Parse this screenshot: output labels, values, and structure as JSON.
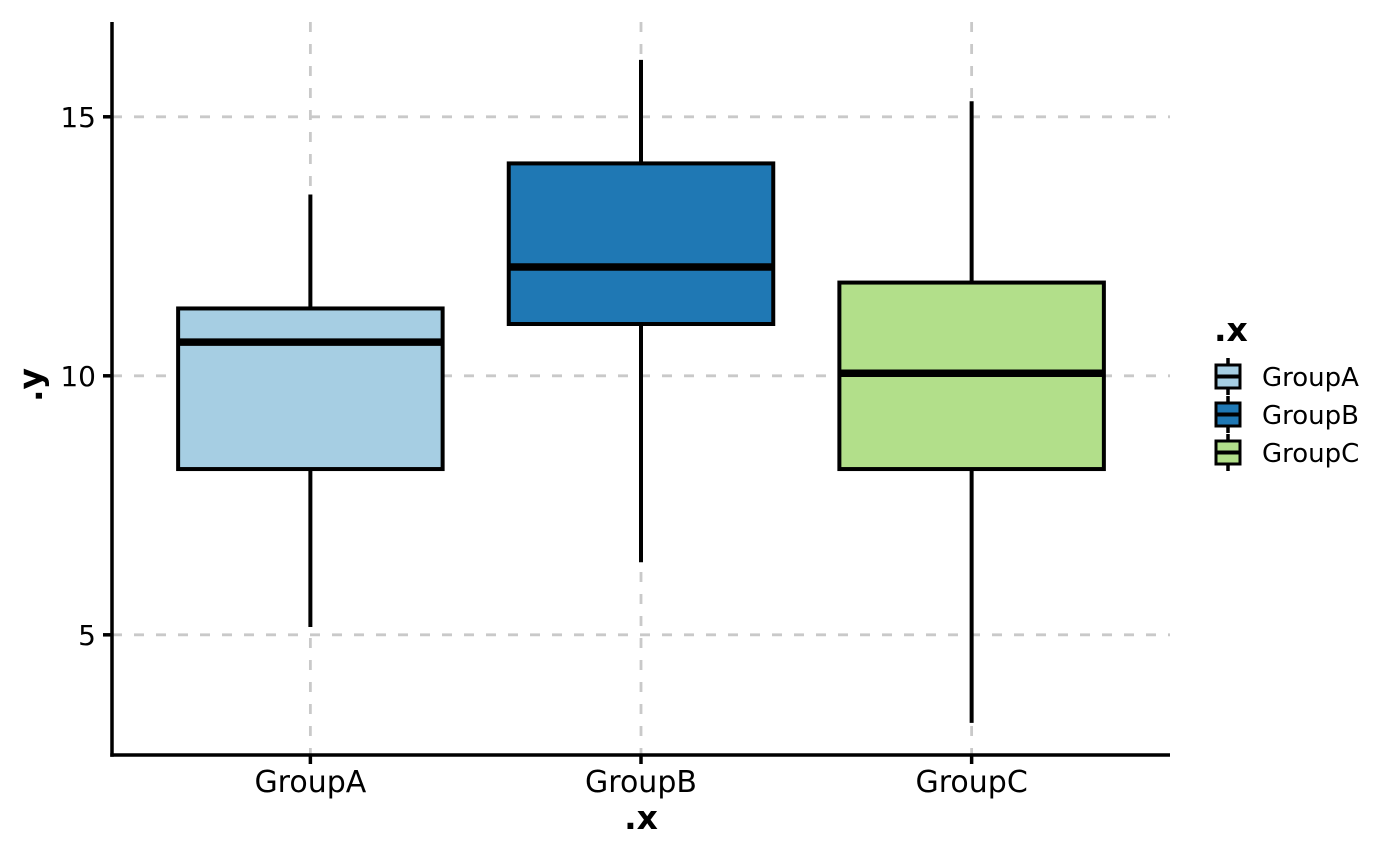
{
  "chart_data": {
    "type": "boxplot",
    "title": "",
    "xlabel": ".x",
    "ylabel": ".y",
    "categories": [
      "GroupA",
      "GroupB",
      "GroupC"
    ],
    "series": [
      {
        "name": "GroupA",
        "fill": "#A6CEE3",
        "whisker_low": 5.15,
        "q1": 8.2,
        "median": 10.65,
        "q3": 11.3,
        "whisker_high": 13.5
      },
      {
        "name": "GroupB",
        "fill": "#1F78B4",
        "whisker_low": 6.4,
        "q1": 11.0,
        "median": 12.1,
        "q3": 14.1,
        "whisker_high": 16.1
      },
      {
        "name": "GroupC",
        "fill": "#B2DF8A",
        "whisker_low": 3.3,
        "q1": 8.2,
        "median": 10.05,
        "q3": 11.8,
        "whisker_high": 15.3
      }
    ],
    "yticks": [
      5,
      10,
      15
    ],
    "ylim": [
      2.68,
      16.83
    ],
    "grid": {
      "style": "dashed",
      "color": "#C9C9C9"
    },
    "legend": {
      "title": ".x",
      "position": "right",
      "entries": [
        "GroupA",
        "GroupB",
        "GroupC"
      ]
    },
    "axis_color": "#000000",
    "box_border_color": "#000000",
    "median_color": "#000000",
    "whisker_color": "#000000",
    "background": "#FFFFFF"
  }
}
